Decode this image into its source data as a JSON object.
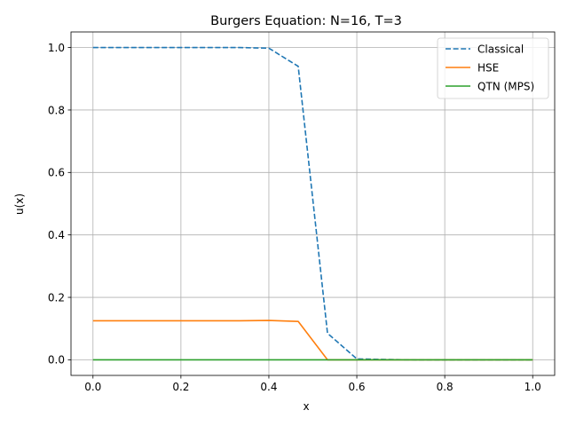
{
  "chart_data": {
    "type": "line",
    "title": "Burgers Equation: N=16, T=3",
    "xlabel": "x",
    "ylabel": "u(x)",
    "xlim": [
      -0.05,
      1.05
    ],
    "ylim": [
      -0.05,
      1.05
    ],
    "xticks": [
      "0.0",
      "0.2",
      "0.4",
      "0.6",
      "0.8",
      "1.0"
    ],
    "yticks": [
      "0.0",
      "0.2",
      "0.4",
      "0.6",
      "0.8",
      "1.0"
    ],
    "grid": true,
    "legend_position": "top-right",
    "x": [
      0.0,
      0.0667,
      0.1333,
      0.2,
      0.2667,
      0.3333,
      0.4,
      0.4667,
      0.5333,
      0.6,
      0.6667,
      0.7333,
      0.8,
      0.8667,
      0.9333,
      1.0
    ],
    "series": [
      {
        "name": "Classical",
        "color": "#1f77b4",
        "style": "dashed",
        "values": [
          1.0,
          1.0,
          1.0,
          1.0,
          1.0,
          1.0,
          0.998,
          0.94,
          0.085,
          0.003,
          0.001,
          0.0,
          0.0,
          0.0,
          0.0,
          0.0
        ]
      },
      {
        "name": "HSE",
        "color": "#ff7f0e",
        "style": "solid",
        "values": [
          0.125,
          0.125,
          0.125,
          0.125,
          0.125,
          0.125,
          0.126,
          0.123,
          0.0,
          0.0,
          0.0,
          0.0,
          0.0,
          0.0,
          0.0,
          0.0
        ]
      },
      {
        "name": "QTN (MPS)",
        "color": "#2ca02c",
        "style": "solid",
        "values": [
          0.0,
          0.0,
          0.0,
          0.0,
          0.0,
          0.0,
          0.0,
          0.0,
          0.0,
          0.0,
          0.0,
          0.0,
          0.0,
          0.0,
          0.0,
          0.0
        ]
      }
    ]
  }
}
